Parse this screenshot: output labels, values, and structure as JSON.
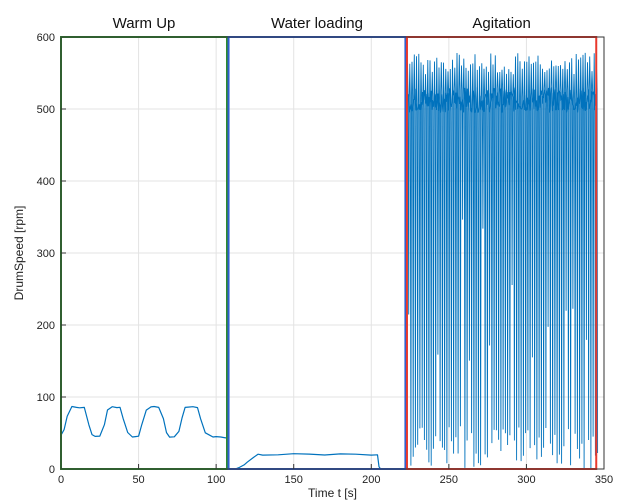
{
  "chart_data": {
    "type": "line",
    "title": "",
    "xlabel": "Time t [s]",
    "ylabel": "DrumSpeed [rpm]",
    "xlim": [
      0,
      350
    ],
    "ylim": [
      0,
      600
    ],
    "x_ticks": [
      "0",
      "50",
      "100",
      "150",
      "200",
      "250",
      "300",
      "350"
    ],
    "y_ticks": [
      "0",
      "100",
      "200",
      "300",
      "400",
      "500",
      "600"
    ],
    "grid": true,
    "line_color": "#0072BD",
    "phases": [
      {
        "label": "Warm Up",
        "x_start": 0,
        "x_end": 107,
        "color": "#2e8b2e"
      },
      {
        "label": "Water loading",
        "x_start": 108,
        "x_end": 222,
        "color": "#2f5fd0"
      },
      {
        "label": "Agitation",
        "x_start": 223,
        "x_end": 345,
        "color": "#e8392c"
      }
    ],
    "series": [
      {
        "segments": [
          {
            "phase": "warm_up",
            "x": [
              0,
              2,
              4,
              7,
              10,
              12,
              15,
              18,
              20,
              22,
              25,
              28,
              30,
              33,
              36,
              38,
              40,
              43,
              46,
              48,
              50,
              52,
              55,
              58,
              60,
              63,
              66,
              68,
              70,
              73,
              76,
              78,
              80,
              82,
              85,
              88,
              90,
              93,
              96,
              98,
              100,
              103,
              106,
              107
            ],
            "y": [
              47,
              55,
              73,
              86,
              86,
              85,
              85,
              62,
              48,
              45,
              45,
              62,
              82,
              86,
              86,
              86,
              70,
              50,
              45,
              45,
              45,
              62,
              82,
              86,
              86,
              86,
              70,
              50,
              45,
              45,
              52,
              70,
              86,
              86,
              86,
              86,
              70,
              50,
              46,
              45,
              45,
              44,
              44,
              44
            ]
          },
          {
            "phase": "water_loading",
            "x": [
              108,
              112,
              115,
              118,
              120,
              124,
              127,
              130,
              140,
              150,
              160,
              170,
              180,
              190,
              200,
              204,
              205,
              206
            ],
            "y": [
              0,
              0,
              2,
              5,
              10,
              16,
              20,
              20,
              20,
              21,
              20,
              20,
              21,
              20,
              20,
              20,
              3,
              0
            ]
          },
          {
            "phase": "agitation",
            "x": [
              223,
              345
            ],
            "y_min": 0,
            "y_max": 578,
            "y_center_band": [
              495,
              530
            ],
            "oscillation_period": 1.45
          }
        ]
      }
    ]
  }
}
